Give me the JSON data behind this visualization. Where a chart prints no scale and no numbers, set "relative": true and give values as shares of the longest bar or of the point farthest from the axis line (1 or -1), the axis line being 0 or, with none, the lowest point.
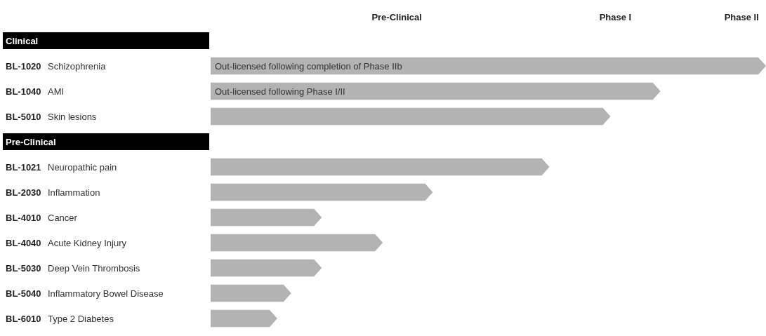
{
  "chart_data": {
    "type": "bar",
    "orientation": "horizontal",
    "relative": true,
    "color": "#b3b3b3",
    "categories": [
      "Clinical",
      "BL-1020 Schizophrenia",
      "BL-1040 AMI",
      "BL-5010 Skin lesions",
      "Pre-Clinical",
      "BL-1021 Neuropathic pain",
      "BL-2030 Inflammation",
      "BL-4010 Cancer",
      "BL-4040 Acute Kidney Injury",
      "BL-5030 Deep Vein Thrombosis",
      "BL-5040 Inflammatory Bowel Disease",
      "BL-6010 Type 2 Diabetes"
    ],
    "values": [
      null,
      1,
      0.81,
      0.72,
      null,
      0.61,
      0.4,
      0.2,
      0.31,
      0.2,
      0.145,
      0.12
    ],
    "annotations": [
      "Pre-Clinical",
      "Phase I",
      "Phase II",
      {
        "text": "Out-licensed following completion of Phase IIb",
        "y": "BL-1020 Schizophrenia"
      },
      {
        "text": "Out-licensed following Phase I/II",
        "y": "BL-1040 AMI"
      }
    ]
  }
}
